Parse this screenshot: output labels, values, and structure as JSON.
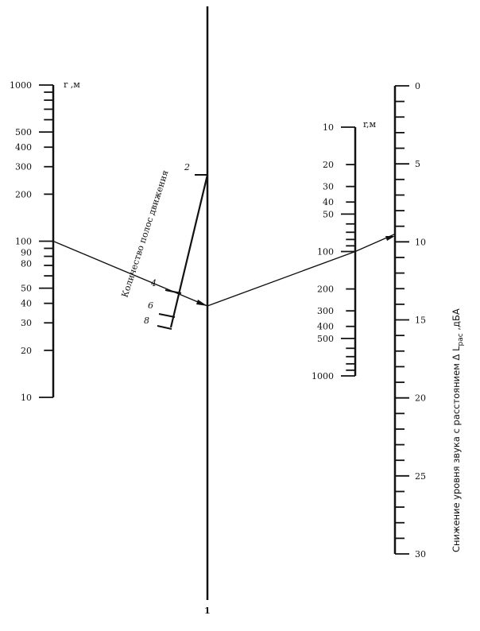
{
  "left_scale": {
    "unit_label": "r ,м",
    "tick_labels": [
      "1000",
      "500",
      "400",
      "300",
      "200",
      "100",
      "90",
      "80",
      "50",
      "40",
      "30",
      "20",
      "10"
    ],
    "range": [
      10,
      1000
    ],
    "log": true
  },
  "lanes_scale": {
    "title": "Количество полос движения",
    "tick_labels": [
      "2",
      "4",
      "6",
      "8"
    ]
  },
  "center_line": {
    "label": "1"
  },
  "right_r_scale": {
    "unit_label": "r,м",
    "tick_labels": [
      "10",
      "20",
      "30",
      "40",
      "50",
      "100",
      "200",
      "300",
      "400",
      "500",
      "1000"
    ],
    "range": [
      10,
      1000
    ],
    "log": true
  },
  "dba_scale": {
    "title_main": "Снижение уровня звука с расстоянием Δ L",
    "title_sub": "рас",
    "title_unit": " ,дБА",
    "tick_labels": [
      "0",
      "5",
      "10",
      "15",
      "20",
      "25",
      "30"
    ],
    "range": [
      0,
      30
    ]
  },
  "example": {
    "r_left": 100,
    "lanes": 4,
    "r_right": 100,
    "result_dba": 9.5
  },
  "colors": {
    "ink": "#111111",
    "background": "#ffffff"
  }
}
